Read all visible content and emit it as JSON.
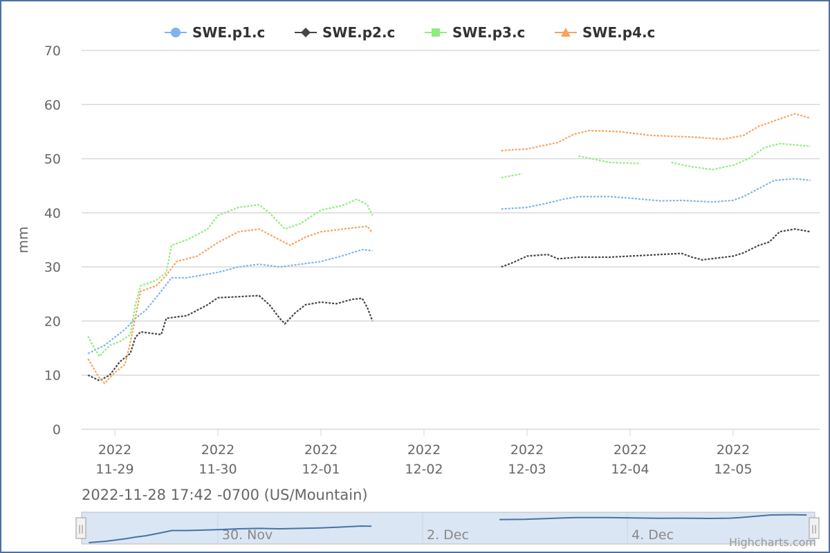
{
  "chart_data": {
    "type": "line",
    "x_unit": "days since 2022-11-29 00:00",
    "ylabel": "mm",
    "ylim": [
      0,
      70
    ],
    "yticks": [
      0,
      10,
      20,
      30,
      40,
      50,
      60,
      70
    ],
    "xticks": [
      {
        "x": 0,
        "l1": "2022",
        "l2": "11-29"
      },
      {
        "x": 1,
        "l1": "2022",
        "l2": "11-30"
      },
      {
        "x": 2,
        "l1": "2022",
        "l2": "12-01"
      },
      {
        "x": 3,
        "l1": "2022",
        "l2": "12-02"
      },
      {
        "x": 4,
        "l1": "2022",
        "l2": "12-03"
      },
      {
        "x": 5,
        "l1": "2022",
        "l2": "12-04"
      },
      {
        "x": 6,
        "l1": "2022",
        "l2": "12-05"
      }
    ],
    "xlim": [
      -0.33,
      6.83
    ],
    "grid": true,
    "legend_position": "top-center",
    "series": [
      {
        "name": "SWE.p1.c",
        "color": "#7cb5ec",
        "marker": "circle",
        "points": [
          [
            -0.26,
            14
          ],
          [
            -0.1,
            15.5
          ],
          [
            0,
            17
          ],
          [
            0.1,
            18.5
          ],
          [
            0.2,
            20.5
          ],
          [
            0.3,
            22
          ],
          [
            0.45,
            25.5
          ],
          [
            0.55,
            28
          ],
          [
            0.7,
            28
          ],
          [
            1,
            29
          ],
          [
            1.2,
            30
          ],
          [
            1.4,
            30.5
          ],
          [
            1.6,
            30
          ],
          [
            1.8,
            30.5
          ],
          [
            2,
            31
          ],
          [
            2.2,
            32
          ],
          [
            2.4,
            33.2
          ],
          [
            2.5,
            33
          ],
          null,
          [
            3.75,
            40.7
          ],
          [
            4,
            41
          ],
          [
            4.2,
            41.8
          ],
          [
            4.35,
            42.5
          ],
          [
            4.5,
            43
          ],
          [
            4.8,
            43
          ],
          [
            5,
            42.7
          ],
          [
            5.3,
            42.2
          ],
          [
            5.5,
            42.3
          ],
          [
            5.8,
            42
          ],
          [
            6,
            42.3
          ],
          [
            6.1,
            43
          ],
          [
            6.25,
            44.5
          ],
          [
            6.4,
            46
          ],
          [
            6.6,
            46.3
          ],
          [
            6.75,
            46
          ]
        ]
      },
      {
        "name": "SWE.p2.c",
        "color": "#434348",
        "marker": "diamond",
        "points": [
          [
            -0.26,
            10
          ],
          [
            -0.15,
            9
          ],
          [
            -0.05,
            10
          ],
          [
            0.05,
            12.5
          ],
          [
            0.15,
            14
          ],
          [
            0.2,
            17
          ],
          [
            0.25,
            18
          ],
          [
            0.45,
            17.5
          ],
          [
            0.5,
            20.5
          ],
          [
            0.7,
            21
          ],
          [
            0.9,
            23
          ],
          [
            1,
            24.3
          ],
          [
            1.2,
            24.5
          ],
          [
            1.4,
            24.7
          ],
          [
            1.5,
            23
          ],
          [
            1.6,
            20.5
          ],
          [
            1.65,
            19.5
          ],
          [
            1.75,
            21.5
          ],
          [
            1.85,
            23
          ],
          [
            2,
            23.5
          ],
          [
            2.15,
            23.2
          ],
          [
            2.3,
            24
          ],
          [
            2.4,
            24.2
          ],
          [
            2.45,
            22.5
          ],
          [
            2.5,
            20
          ],
          null,
          [
            3.75,
            30
          ],
          [
            3.85,
            30.7
          ],
          [
            4,
            32
          ],
          [
            4.2,
            32.3
          ],
          [
            4.3,
            31.5
          ],
          [
            4.5,
            31.8
          ],
          [
            4.8,
            31.8
          ],
          [
            5.2,
            32.2
          ],
          [
            5.5,
            32.5
          ],
          [
            5.6,
            31.8
          ],
          [
            5.7,
            31.3
          ],
          [
            6,
            32
          ],
          [
            6.1,
            32.6
          ],
          [
            6.25,
            34
          ],
          [
            6.35,
            34.6
          ],
          [
            6.45,
            36.5
          ],
          [
            6.6,
            37
          ],
          [
            6.75,
            36.5
          ]
        ]
      },
      {
        "name": "SWE.p3.c",
        "color": "#90ed7d",
        "marker": "square",
        "points": [
          [
            -0.26,
            17.2
          ],
          [
            -0.2,
            15
          ],
          [
            -0.15,
            13.5
          ],
          [
            -0.05,
            15.5
          ],
          [
            0.05,
            16.2
          ],
          [
            0.15,
            17.5
          ],
          [
            0.2,
            23
          ],
          [
            0.25,
            26.5
          ],
          [
            0.4,
            27.5
          ],
          [
            0.5,
            29
          ],
          [
            0.55,
            34
          ],
          [
            0.7,
            35
          ],
          [
            0.9,
            37
          ],
          [
            1,
            39.5
          ],
          [
            1.2,
            41
          ],
          [
            1.4,
            41.5
          ],
          [
            1.5,
            40
          ],
          [
            1.65,
            37
          ],
          [
            1.8,
            38
          ],
          [
            2,
            40.5
          ],
          [
            2.2,
            41.3
          ],
          [
            2.35,
            42.5
          ],
          [
            2.45,
            41.5
          ],
          [
            2.5,
            39.5
          ],
          null,
          [
            3.75,
            46.5
          ],
          [
            3.95,
            47.2
          ],
          null,
          [
            4.5,
            50.5
          ],
          [
            4.8,
            49.3
          ],
          [
            5.1,
            49.1
          ],
          null,
          [
            5.4,
            49.3
          ],
          [
            5.6,
            48.5
          ],
          [
            5.8,
            48
          ],
          [
            6,
            48.8
          ],
          [
            6.15,
            50
          ],
          [
            6.3,
            52
          ],
          [
            6.45,
            52.8
          ],
          [
            6.75,
            52.3
          ]
        ]
      },
      {
        "name": "SWE.p4.c",
        "color": "#f7a35c",
        "marker": "triangle",
        "points": [
          [
            -0.26,
            13
          ],
          [
            -0.15,
            9.5
          ],
          [
            -0.1,
            8.5
          ],
          [
            0,
            10.5
          ],
          [
            0.1,
            12
          ],
          [
            0.15,
            16
          ],
          [
            0.25,
            25.5
          ],
          [
            0.4,
            26.5
          ],
          [
            0.5,
            28.5
          ],
          [
            0.6,
            31
          ],
          [
            0.8,
            32
          ],
          [
            1,
            34.5
          ],
          [
            1.2,
            36.5
          ],
          [
            1.4,
            37
          ],
          [
            1.55,
            35.5
          ],
          [
            1.7,
            34
          ],
          [
            1.85,
            35.5
          ],
          [
            2,
            36.5
          ],
          [
            2.3,
            37.2
          ],
          [
            2.45,
            37.5
          ],
          [
            2.5,
            36.3
          ],
          null,
          [
            3.75,
            51.5
          ],
          [
            4,
            51.8
          ],
          [
            4.3,
            53
          ],
          [
            4.45,
            54.5
          ],
          [
            4.6,
            55.2
          ],
          [
            4.9,
            55
          ],
          [
            5.2,
            54.3
          ],
          [
            5.6,
            54
          ],
          [
            5.9,
            53.6
          ],
          [
            6.1,
            54.3
          ],
          [
            6.25,
            56
          ],
          [
            6.4,
            57
          ],
          [
            6.6,
            58.3
          ],
          [
            6.75,
            57.5
          ]
        ]
      }
    ]
  },
  "timezone_label": "2022-11-28 17:42 -0700 (US/Mountain)",
  "navigator": {
    "labels": [
      {
        "x": 1,
        "text": "30. Nov"
      },
      {
        "x": 3,
        "text": "2. Dec"
      },
      {
        "x": 5,
        "text": "4. Dec"
      }
    ],
    "handle_glyph": "||"
  },
  "credits": "Highcharts.com"
}
